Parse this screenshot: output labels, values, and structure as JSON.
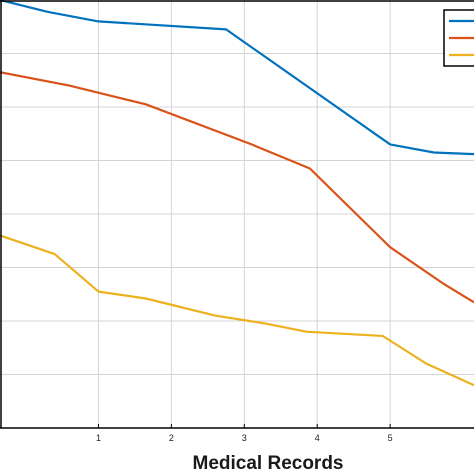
{
  "chart_data": {
    "type": "line",
    "title": "",
    "xlabel": "Medical Records",
    "ylabel": "",
    "xlim": [
      -0.35,
      6.15
    ],
    "ylim": [
      0,
      8
    ],
    "x_ticks": [
      1,
      2,
      3,
      4,
      5
    ],
    "grid": true,
    "legend": {
      "position": "top-right",
      "entries": [
        "",
        "",
        ""
      ]
    },
    "series": [
      {
        "color": "#0072BD",
        "x": [
          -0.35,
          0.3,
          1.0,
          2.75,
          5.0,
          5.6,
          6.15
        ],
        "y": [
          8.0,
          7.78,
          7.6,
          7.45,
          5.3,
          5.15,
          5.12
        ]
      },
      {
        "color": "#D95319",
        "x": [
          -0.35,
          0.6,
          1.65,
          3.1,
          3.9,
          5.0,
          5.75,
          6.15
        ],
        "y": [
          6.65,
          6.4,
          6.05,
          5.3,
          4.85,
          3.38,
          2.68,
          2.35
        ]
      },
      {
        "color": "#EDB120",
        "x": [
          -0.35,
          0.4,
          1.0,
          1.65,
          2.6,
          3.3,
          3.85,
          4.9,
          5.5,
          6.15
        ],
        "y": [
          3.6,
          3.25,
          2.55,
          2.42,
          2.1,
          1.95,
          1.8,
          1.72,
          1.2,
          0.8
        ]
      }
    ]
  }
}
